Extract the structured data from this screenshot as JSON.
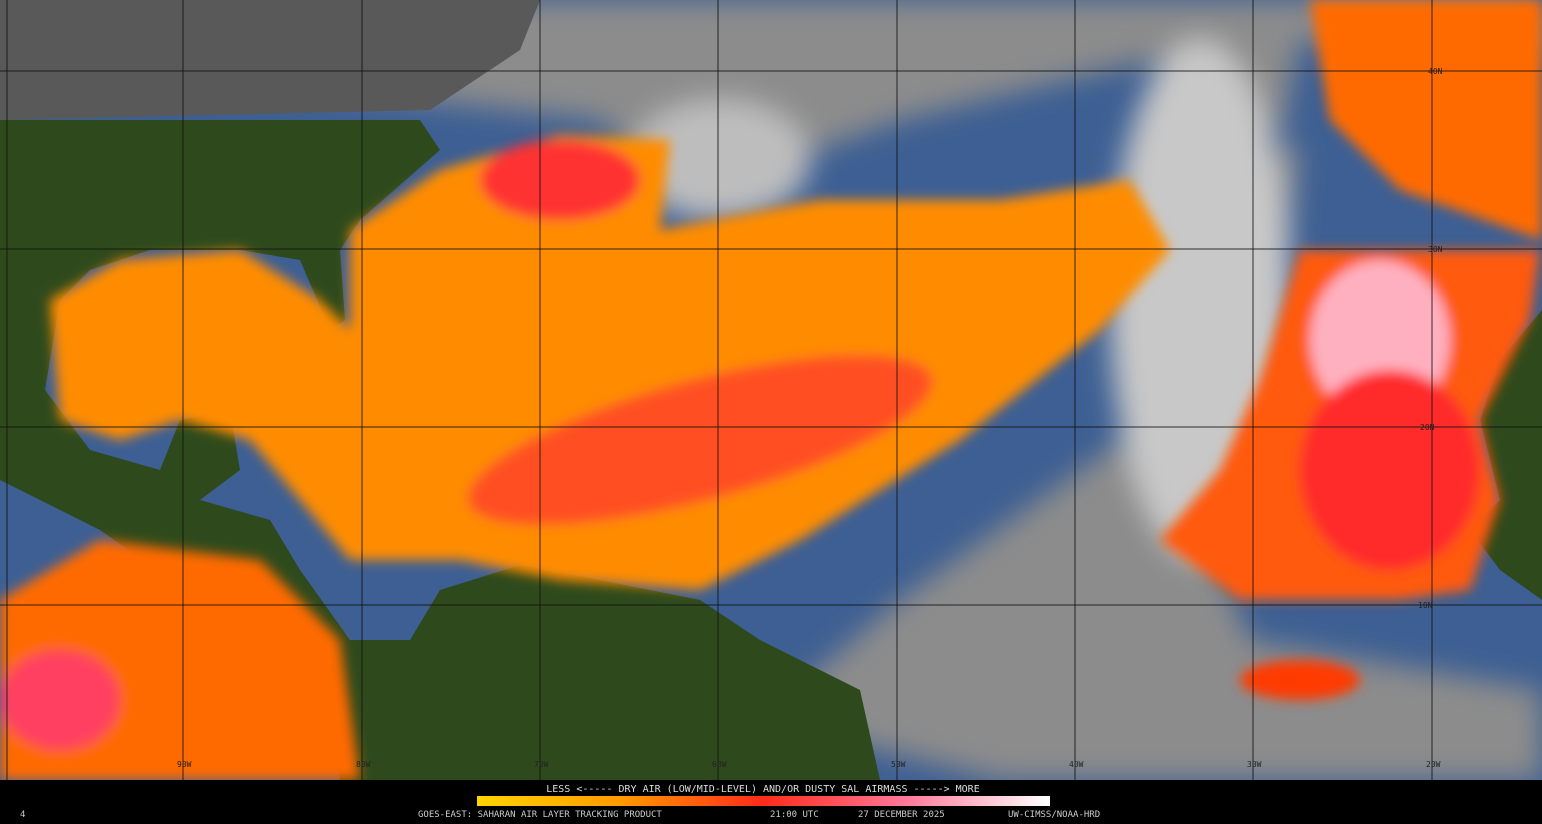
{
  "legend": {
    "caption": "LESS <----- DRY AIR (LOW/MID-LEVEL) AND/OR DUSTY SAL AIRMASS -----> MORE"
  },
  "footer": {
    "product": "GOES-EAST: SAHARAN AIR LAYER TRACKING PRODUCT",
    "time": "21:00 UTC",
    "date": "27 DECEMBER 2025",
    "credit": "UW-CIMSS/NOAA-HRD",
    "corner": "4"
  },
  "grid": {
    "lat_labels": [
      "40N",
      "30N",
      "20N",
      "10N"
    ],
    "lon_labels": [
      "90W",
      "80W",
      "70W",
      "60W",
      "50W",
      "40W",
      "30W",
      "20W"
    ]
  }
}
